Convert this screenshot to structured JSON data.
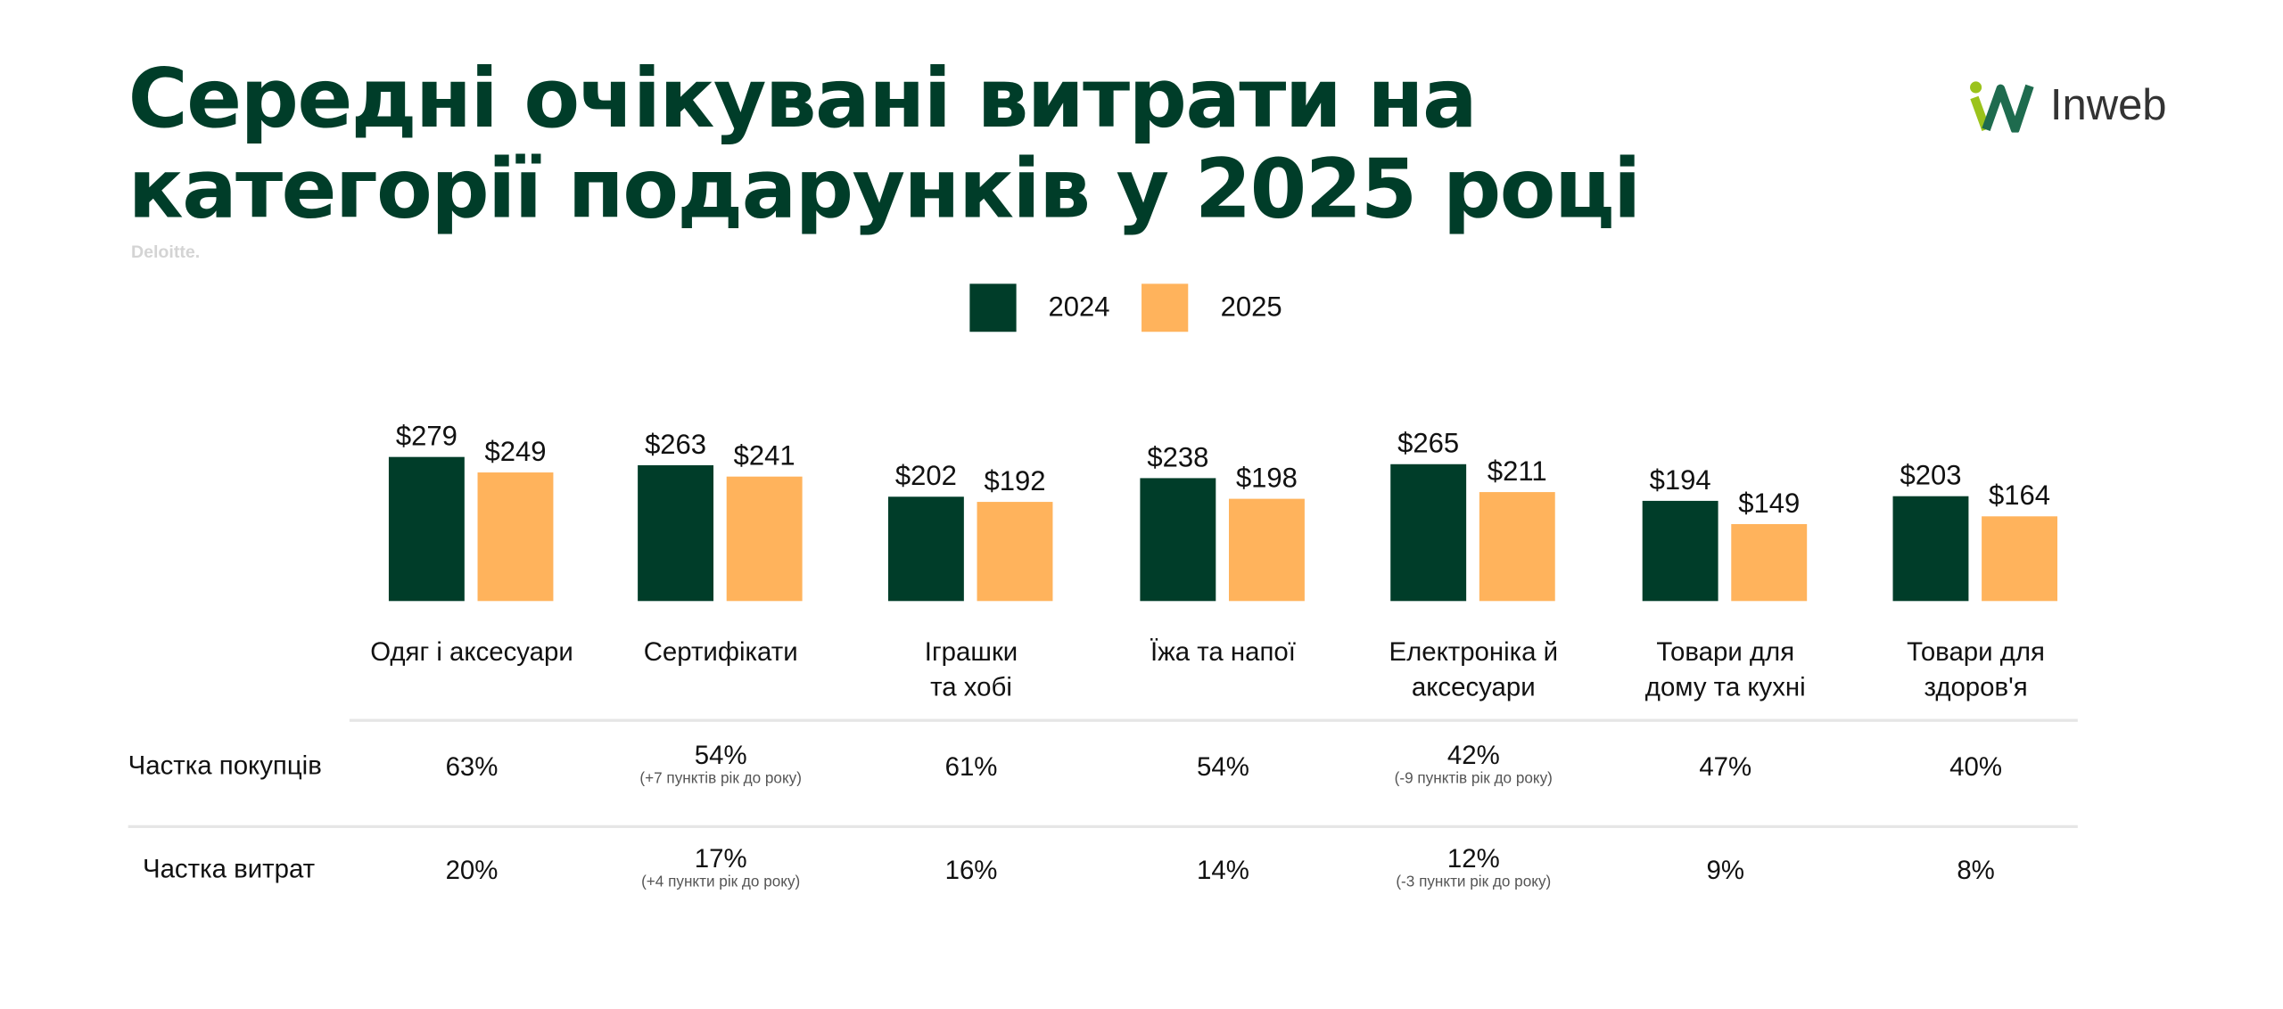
{
  "title_line1": "Середні очікувані витрати на",
  "title_line2": "категорії подарунків у 2025 році",
  "source": "Deloitte.",
  "logo_text": "Inweb",
  "colors": {
    "y2024": "#003D29",
    "y2025": "#FFB35C",
    "title": "#003D29"
  },
  "chart_data": {
    "type": "bar",
    "title": "Середні очікувані витрати на категорії подарунків у 2025 році",
    "legend_position": "top-center",
    "categories": [
      "Одяг і аксесуари",
      "Сертифікати",
      "Іграшки та хобі",
      "Їжа та напої",
      "Електроніка й аксесуари",
      "Товари для дому та кухні",
      "Товари для здоров'я"
    ],
    "category_lines": [
      [
        "Одяг і аксесуари"
      ],
      [
        "Сертифікати"
      ],
      [
        "Іграшки",
        "та хобі"
      ],
      [
        "Їжа та напої"
      ],
      [
        "Електроніка й",
        "аксесуари"
      ],
      [
        "Товари для",
        "дому та кухні"
      ],
      [
        "Товари для",
        "здоров'я"
      ]
    ],
    "series": [
      {
        "name": "2024",
        "values": [
          279,
          263,
          202,
          238,
          265,
          194,
          203
        ],
        "labels": [
          "$279",
          "$263",
          "$202",
          "$238",
          "$265",
          "$194",
          "$203"
        ]
      },
      {
        "name": "2025",
        "values": [
          249,
          241,
          192,
          198,
          211,
          149,
          164
        ],
        "labels": [
          "$249",
          "$241",
          "$192",
          "$198",
          "$211",
          "$149",
          "$164"
        ]
      }
    ],
    "ylim": [
      0,
      300
    ],
    "grid": false
  },
  "table": {
    "rows": [
      {
        "label": "Частка покупців",
        "values": [
          "63%",
          "54%",
          "61%",
          "54%",
          "42%",
          "47%",
          "40%"
        ],
        "notes": [
          "",
          "(+7 пунктів рік до року)",
          "",
          "",
          "(-9 пунктів рік до року)",
          "",
          ""
        ]
      },
      {
        "label": "Частка витрат",
        "values": [
          "20%",
          "17%",
          "16%",
          "14%",
          "12%",
          "9%",
          "8%"
        ],
        "notes": [
          "",
          "(+4 пункти рік до року)",
          "",
          "",
          "(-3 пункти рік до року)",
          "",
          ""
        ]
      }
    ]
  }
}
